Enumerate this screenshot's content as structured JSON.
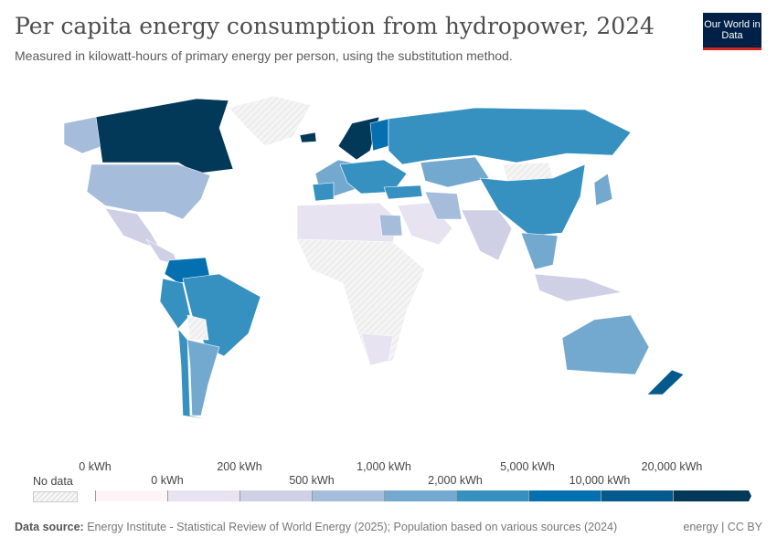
{
  "header": {
    "title": "Per capita energy consumption from hydropower, 2024",
    "subtitle": "Measured in kilowatt-hours of primary energy per person, using the substitution method.",
    "logo": "Our World in Data"
  },
  "legend": {
    "no_data_label": "No data",
    "labels_top": [
      "0 kWh",
      "200 kWh",
      "1,000 kWh",
      "5,000 kWh",
      "20,000 kWh"
    ],
    "labels_bottom": [
      "0 kWh",
      "500 kWh",
      "2,000 kWh",
      "10,000 kWh"
    ],
    "colors": [
      "#fcf4f9",
      "#e7e3f1",
      "#cfcfe5",
      "#a6bcdb",
      "#74a9cf",
      "#3690c0",
      "#0570b0",
      "#045a8d",
      "#023858"
    ],
    "no_data_color": "#f0f0f0"
  },
  "footer": {
    "source_label": "Data source:",
    "source": "Energy Institute - Statistical Review of World Energy (2025); Population based on various sources (2024)",
    "license": "energy | CC BY"
  }
}
